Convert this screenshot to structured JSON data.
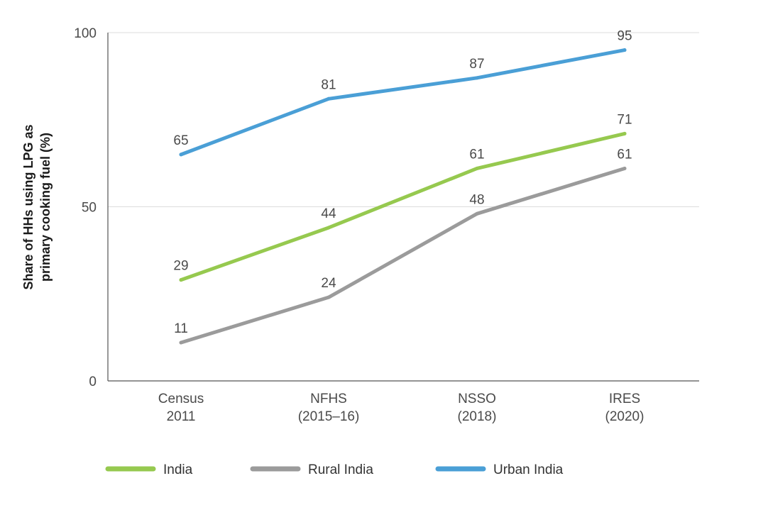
{
  "chart_data": {
    "type": "line",
    "categories": [
      [
        "Census",
        "2011"
      ],
      [
        "NFHS",
        "(2015–16)"
      ],
      [
        "NSSO",
        "(2018)"
      ],
      [
        "IRES",
        "(2020)"
      ]
    ],
    "ylabel": [
      "Share of HHs using LPG as",
      "primary cooking fuel (%)"
    ],
    "ylim": [
      0,
      100
    ],
    "yticks": [
      0,
      50,
      100
    ],
    "grid": true,
    "legend_position": "bottom",
    "series": [
      {
        "name": "India",
        "values": [
          29,
          44,
          61,
          71
        ],
        "labels": [
          "29",
          "44",
          "61",
          "71"
        ],
        "color": "#96c94f"
      },
      {
        "name": "Rural India",
        "values": [
          11,
          24,
          48,
          61
        ],
        "labels": [
          "11",
          "24",
          "48",
          "61"
        ],
        "color": "#9b9b9b"
      },
      {
        "name": "Urban India",
        "values": [
          65,
          81,
          87,
          95
        ],
        "labels": [
          "65",
          "81",
          "87",
          "95"
        ],
        "color": "#4a9fd6"
      }
    ]
  }
}
